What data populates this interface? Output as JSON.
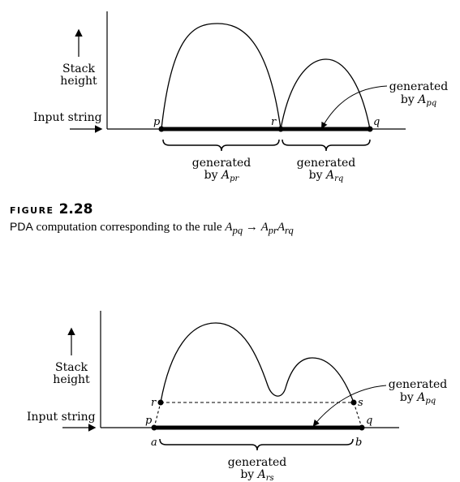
{
  "diagram1": {
    "stack_label_line1": "Stack",
    "stack_label_line2": "height",
    "input_label": "Input string",
    "point_p": "p",
    "point_r": "r",
    "point_q": "q",
    "gen_label": "generated",
    "by_label": "by",
    "apq_base": "A",
    "apq_sub": "pq",
    "apr_sub": "pr",
    "arq_sub": "rq"
  },
  "caption": {
    "figure_label": "FIGURE",
    "figure_number": "2.28",
    "text_prefix": "PDA",
    "text": "computation corresponding to the rule",
    "rule_lhs_base": "A",
    "rule_lhs_sub": "pq",
    "arrow": "→",
    "rule_rhs1_base": "A",
    "rule_rhs1_sub": "pr",
    "rule_rhs2_base": "A",
    "rule_rhs2_sub": "rq"
  },
  "diagram2": {
    "stack_label_line1": "Stack",
    "stack_label_line2": "height",
    "input_label": "Input string",
    "point_r": "r",
    "point_s": "s",
    "point_p": "p",
    "point_q": "q",
    "point_a": "a",
    "point_b": "b",
    "gen_label": "generated",
    "by_label": "by",
    "apq_base": "A",
    "apq_sub": "pq",
    "ars_base": "A",
    "ars_sub": "rs"
  }
}
